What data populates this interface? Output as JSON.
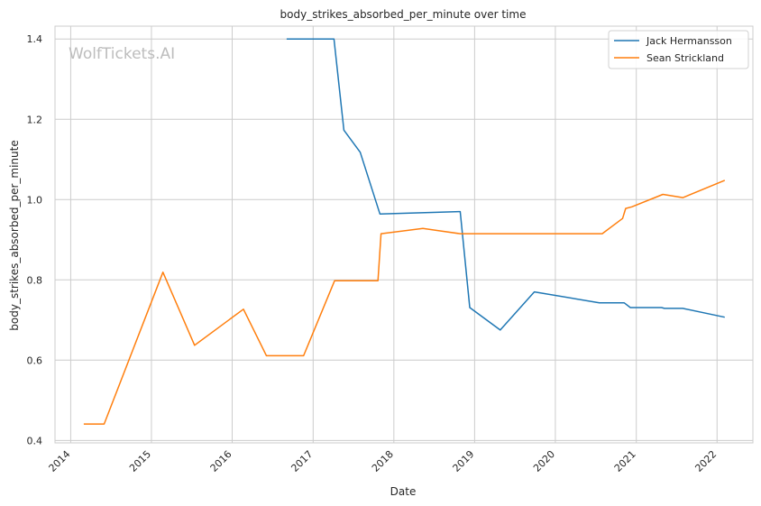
{
  "watermark": "WolfTickets.AI",
  "chart_data": {
    "type": "line",
    "title": "body_strikes_absorbed_per_minute over time",
    "xlabel": "Date",
    "ylabel": "body_strikes_absorbed_per_minute",
    "x_ticks": [
      "2014",
      "2015",
      "2016",
      "2017",
      "2018",
      "2019",
      "2020",
      "2021",
      "2022"
    ],
    "y_ticks": [
      "0.4",
      "0.6",
      "0.8",
      "1.0",
      "1.2",
      "1.4"
    ],
    "xlim": [
      "2013-10-22",
      "2022-06-12"
    ],
    "ylim": [
      0.394,
      1.432
    ],
    "grid": true,
    "legend_position": "top-right",
    "series": [
      {
        "name": "Jack Hermansson",
        "color": "#1f77b4",
        "points": [
          [
            "2016-09-03",
            1.4
          ],
          [
            "2017-04-05",
            1.4
          ],
          [
            "2017-05-20",
            1.173
          ],
          [
            "2017-08-02",
            1.118
          ],
          [
            "2017-10-30",
            0.964
          ],
          [
            "2018-10-28",
            0.97
          ],
          [
            "2018-12-10",
            0.731
          ],
          [
            "2019-04-27",
            0.675
          ],
          [
            "2019-09-28",
            0.77
          ],
          [
            "2020-07-18",
            0.743
          ],
          [
            "2020-11-07",
            0.743
          ],
          [
            "2020-12-05",
            0.731
          ],
          [
            "2021-04-25",
            0.731
          ],
          [
            "2021-05-08",
            0.729
          ],
          [
            "2021-07-30",
            0.729
          ],
          [
            "2022-02-05",
            0.707
          ]
        ]
      },
      {
        "name": "Sean Strickland",
        "color": "#ff7f0e",
        "points": [
          [
            "2014-03-01",
            0.441
          ],
          [
            "2014-06-01",
            0.441
          ],
          [
            "2015-02-22",
            0.819
          ],
          [
            "2015-07-15",
            0.637
          ],
          [
            "2016-02-21",
            0.727
          ],
          [
            "2016-06-04",
            0.611
          ],
          [
            "2016-11-19",
            0.611
          ],
          [
            "2017-04-08",
            0.798
          ],
          [
            "2017-10-21",
            0.798
          ],
          [
            "2017-11-04",
            0.915
          ],
          [
            "2018-05-12",
            0.928
          ],
          [
            "2018-10-27",
            0.915
          ],
          [
            "2020-07-31",
            0.915
          ],
          [
            "2020-10-31",
            0.953
          ],
          [
            "2020-11-14",
            0.978
          ],
          [
            "2020-12-12",
            0.982
          ],
          [
            "2021-05-01",
            1.013
          ],
          [
            "2021-07-31",
            1.005
          ],
          [
            "2022-02-05",
            1.048
          ]
        ]
      }
    ]
  }
}
